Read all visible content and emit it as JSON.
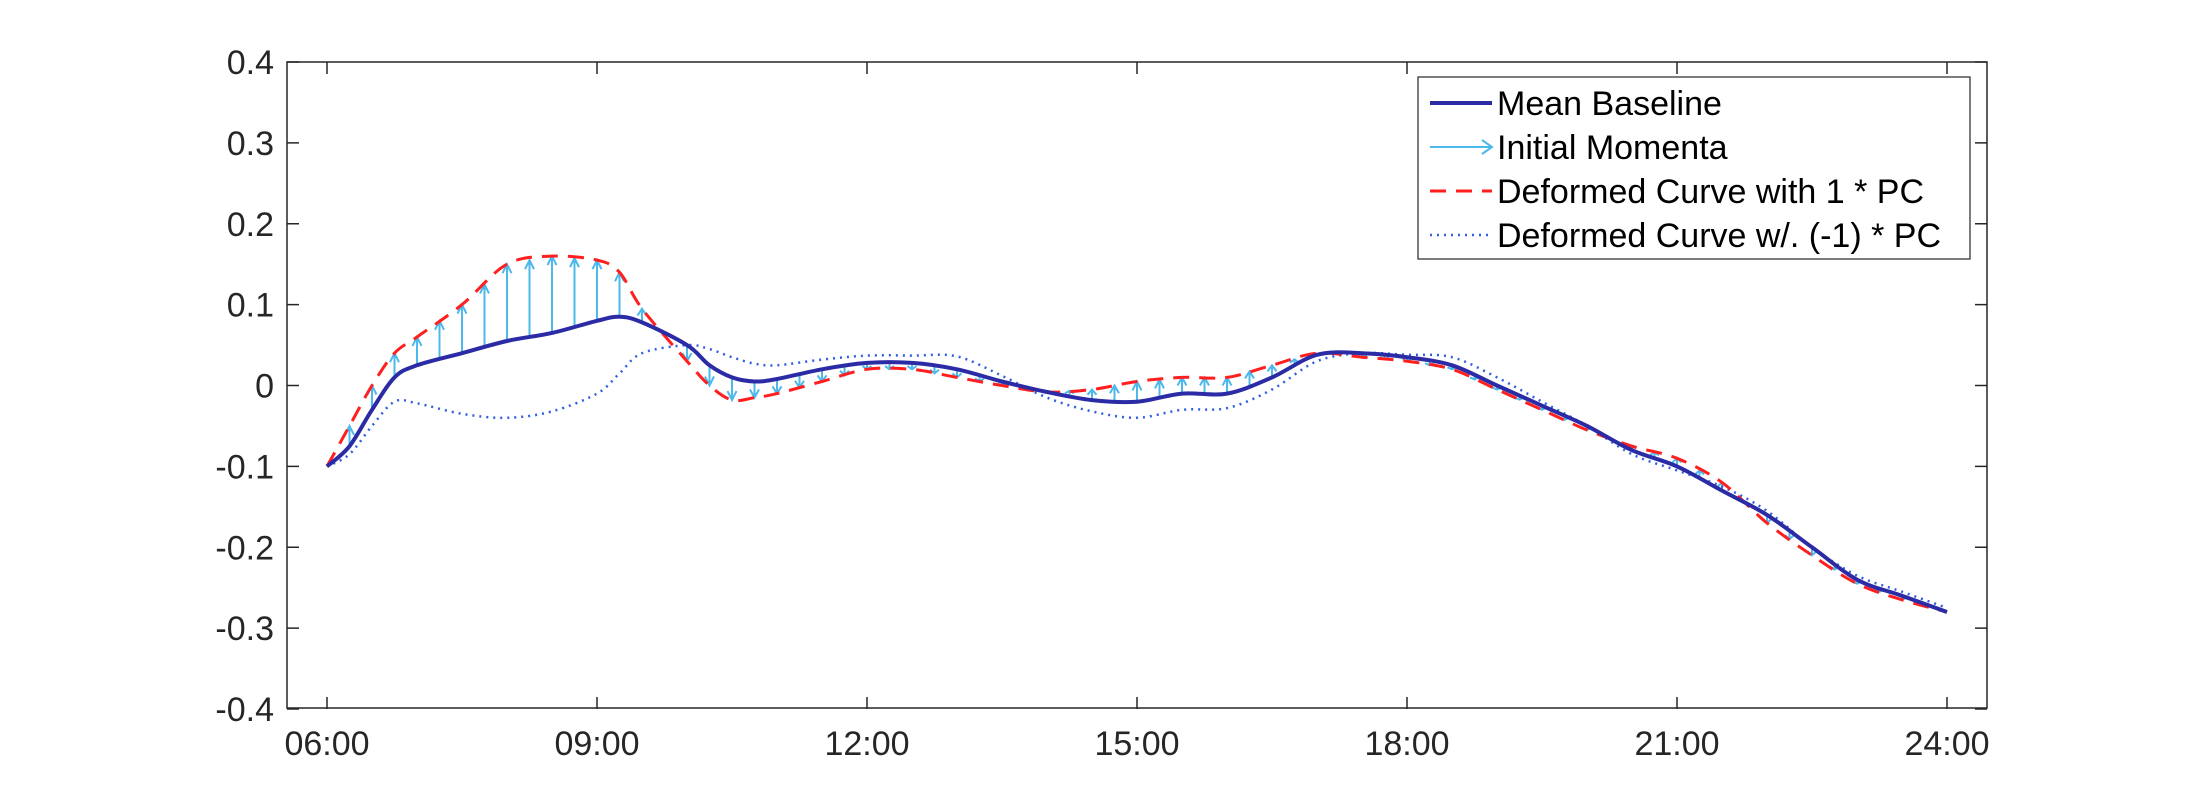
{
  "chart_data": {
    "type": "line",
    "title": "",
    "xlabel": "",
    "ylabel": "",
    "x_ticks": [
      "06:00",
      "09:00",
      "12:00",
      "15:00",
      "18:00",
      "21:00",
      "24:00"
    ],
    "y_ticks": [
      "-0.4",
      "-0.3",
      "-0.2",
      "-0.1",
      "0",
      "0.1",
      "0.2",
      "0.3",
      "0.4"
    ],
    "xlim": [
      6,
      24
    ],
    "ylim": [
      -0.4,
      0.4
    ],
    "grid": false,
    "legend_position": "top-right",
    "colors": {
      "mean": "#2b2ba6",
      "momenta": "#4db8ea",
      "plus_pc": "#ff1f1f",
      "minus_pc": "#2f5fe0",
      "axis": "#262626"
    },
    "legend": [
      {
        "label": "Mean Baseline",
        "style": "solid"
      },
      {
        "label": "Initial Momenta",
        "style": "arrow"
      },
      {
        "label": "Deformed Curve with 1 * PC",
        "style": "dashed"
      },
      {
        "label": "Deformed Curve w/. (-1) * PC",
        "style": "dotted"
      }
    ],
    "series": [
      {
        "name": "Mean Baseline",
        "x": [
          6,
          6.25,
          6.5,
          6.75,
          7,
          7.5,
          8,
          8.5,
          9,
          9.25,
          9.5,
          10,
          10.25,
          10.5,
          10.75,
          11,
          11.5,
          12,
          12.5,
          13,
          13.5,
          14,
          14.5,
          15,
          15.5,
          16,
          16.5,
          17,
          17.5,
          18,
          18.5,
          19,
          19.5,
          20,
          20.5,
          21,
          21.5,
          22,
          22.5,
          23,
          23.5,
          24
        ],
        "y": [
          -0.1,
          -0.075,
          -0.03,
          0.01,
          0.025,
          0.04,
          0.055,
          0.065,
          0.08,
          0.085,
          0.078,
          0.05,
          0.025,
          0.01,
          0.005,
          0.008,
          0.02,
          0.028,
          0.028,
          0.02,
          0.005,
          -0.008,
          -0.018,
          -0.02,
          -0.01,
          -0.01,
          0.01,
          0.038,
          0.04,
          0.035,
          0.025,
          0.0,
          -0.025,
          -0.05,
          -0.08,
          -0.1,
          -0.13,
          -0.16,
          -0.2,
          -0.24,
          -0.26,
          -0.28
        ]
      },
      {
        "name": "Deformed Curve with 1 * PC",
        "x": [
          6,
          6.25,
          6.5,
          6.75,
          7,
          7.5,
          8,
          8.5,
          9,
          9.25,
          9.5,
          10,
          10.25,
          10.5,
          10.75,
          11,
          11.5,
          12,
          12.5,
          13,
          13.5,
          14,
          14.5,
          15,
          15.5,
          16,
          16.5,
          17,
          17.5,
          18,
          18.5,
          19,
          19.5,
          20,
          20.5,
          21,
          21.5,
          22,
          22.5,
          23,
          23.5,
          24
        ],
        "y": [
          -0.1,
          -0.05,
          0.0,
          0.04,
          0.06,
          0.1,
          0.15,
          0.16,
          0.155,
          0.14,
          0.095,
          0.03,
          0.0,
          -0.018,
          -0.015,
          -0.01,
          0.005,
          0.02,
          0.02,
          0.01,
          0.0,
          -0.008,
          -0.005,
          0.005,
          0.01,
          0.01,
          0.025,
          0.04,
          0.035,
          0.03,
          0.02,
          -0.005,
          -0.03,
          -0.055,
          -0.075,
          -0.09,
          -0.12,
          -0.17,
          -0.21,
          -0.245,
          -0.265,
          -0.28
        ]
      },
      {
        "name": "Deformed Curve w/. (-1) * PC",
        "x": [
          6,
          6.25,
          6.5,
          6.75,
          7,
          7.5,
          8,
          8.5,
          9,
          9.25,
          9.5,
          10,
          10.25,
          10.5,
          10.75,
          11,
          11.5,
          12,
          12.5,
          13,
          13.5,
          14,
          14.5,
          15,
          15.5,
          16,
          16.5,
          17,
          17.5,
          18,
          18.5,
          19,
          19.5,
          20,
          20.5,
          21,
          21.5,
          22,
          22.5,
          23,
          23.5,
          24
        ],
        "y": [
          -0.1,
          -0.085,
          -0.05,
          -0.02,
          -0.022,
          -0.035,
          -0.04,
          -0.032,
          -0.01,
          0.015,
          0.04,
          0.05,
          0.045,
          0.035,
          0.027,
          0.025,
          0.032,
          0.037,
          0.037,
          0.036,
          0.012,
          -0.015,
          -0.032,
          -0.04,
          -0.03,
          -0.028,
          -0.005,
          0.03,
          0.04,
          0.038,
          0.035,
          0.01,
          -0.02,
          -0.05,
          -0.085,
          -0.105,
          -0.125,
          -0.155,
          -0.2,
          -0.235,
          -0.255,
          -0.275
        ]
      }
    ]
  }
}
